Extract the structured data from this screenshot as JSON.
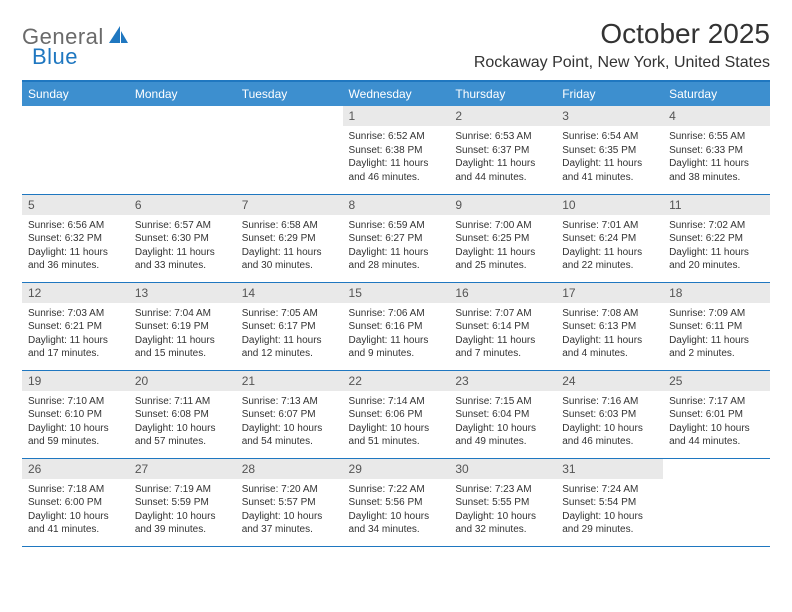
{
  "logo": {
    "text1": "General",
    "text2": "Blue"
  },
  "title": "October 2025",
  "location": "Rockaway Point, New York, United States",
  "colors": {
    "header_bg": "#3d8fcf",
    "header_text": "#ffffff",
    "border": "#1f77c0",
    "daynum_bg": "#e9e9e9",
    "logo_gray": "#6a6a6a",
    "logo_blue": "#1f77c0"
  },
  "dayHeaders": [
    "Sunday",
    "Monday",
    "Tuesday",
    "Wednesday",
    "Thursday",
    "Friday",
    "Saturday"
  ],
  "weeks": [
    [
      {
        "n": "",
        "lines": []
      },
      {
        "n": "",
        "lines": []
      },
      {
        "n": "",
        "lines": []
      },
      {
        "n": "1",
        "lines": [
          "Sunrise: 6:52 AM",
          "Sunset: 6:38 PM",
          "Daylight: 11 hours and 46 minutes."
        ]
      },
      {
        "n": "2",
        "lines": [
          "Sunrise: 6:53 AM",
          "Sunset: 6:37 PM",
          "Daylight: 11 hours and 44 minutes."
        ]
      },
      {
        "n": "3",
        "lines": [
          "Sunrise: 6:54 AM",
          "Sunset: 6:35 PM",
          "Daylight: 11 hours and 41 minutes."
        ]
      },
      {
        "n": "4",
        "lines": [
          "Sunrise: 6:55 AM",
          "Sunset: 6:33 PM",
          "Daylight: 11 hours and 38 minutes."
        ]
      }
    ],
    [
      {
        "n": "5",
        "lines": [
          "Sunrise: 6:56 AM",
          "Sunset: 6:32 PM",
          "Daylight: 11 hours and 36 minutes."
        ]
      },
      {
        "n": "6",
        "lines": [
          "Sunrise: 6:57 AM",
          "Sunset: 6:30 PM",
          "Daylight: 11 hours and 33 minutes."
        ]
      },
      {
        "n": "7",
        "lines": [
          "Sunrise: 6:58 AM",
          "Sunset: 6:29 PM",
          "Daylight: 11 hours and 30 minutes."
        ]
      },
      {
        "n": "8",
        "lines": [
          "Sunrise: 6:59 AM",
          "Sunset: 6:27 PM",
          "Daylight: 11 hours and 28 minutes."
        ]
      },
      {
        "n": "9",
        "lines": [
          "Sunrise: 7:00 AM",
          "Sunset: 6:25 PM",
          "Daylight: 11 hours and 25 minutes."
        ]
      },
      {
        "n": "10",
        "lines": [
          "Sunrise: 7:01 AM",
          "Sunset: 6:24 PM",
          "Daylight: 11 hours and 22 minutes."
        ]
      },
      {
        "n": "11",
        "lines": [
          "Sunrise: 7:02 AM",
          "Sunset: 6:22 PM",
          "Daylight: 11 hours and 20 minutes."
        ]
      }
    ],
    [
      {
        "n": "12",
        "lines": [
          "Sunrise: 7:03 AM",
          "Sunset: 6:21 PM",
          "Daylight: 11 hours and 17 minutes."
        ]
      },
      {
        "n": "13",
        "lines": [
          "Sunrise: 7:04 AM",
          "Sunset: 6:19 PM",
          "Daylight: 11 hours and 15 minutes."
        ]
      },
      {
        "n": "14",
        "lines": [
          "Sunrise: 7:05 AM",
          "Sunset: 6:17 PM",
          "Daylight: 11 hours and 12 minutes."
        ]
      },
      {
        "n": "15",
        "lines": [
          "Sunrise: 7:06 AM",
          "Sunset: 6:16 PM",
          "Daylight: 11 hours and 9 minutes."
        ]
      },
      {
        "n": "16",
        "lines": [
          "Sunrise: 7:07 AM",
          "Sunset: 6:14 PM",
          "Daylight: 11 hours and 7 minutes."
        ]
      },
      {
        "n": "17",
        "lines": [
          "Sunrise: 7:08 AM",
          "Sunset: 6:13 PM",
          "Daylight: 11 hours and 4 minutes."
        ]
      },
      {
        "n": "18",
        "lines": [
          "Sunrise: 7:09 AM",
          "Sunset: 6:11 PM",
          "Daylight: 11 hours and 2 minutes."
        ]
      }
    ],
    [
      {
        "n": "19",
        "lines": [
          "Sunrise: 7:10 AM",
          "Sunset: 6:10 PM",
          "Daylight: 10 hours and 59 minutes."
        ]
      },
      {
        "n": "20",
        "lines": [
          "Sunrise: 7:11 AM",
          "Sunset: 6:08 PM",
          "Daylight: 10 hours and 57 minutes."
        ]
      },
      {
        "n": "21",
        "lines": [
          "Sunrise: 7:13 AM",
          "Sunset: 6:07 PM",
          "Daylight: 10 hours and 54 minutes."
        ]
      },
      {
        "n": "22",
        "lines": [
          "Sunrise: 7:14 AM",
          "Sunset: 6:06 PM",
          "Daylight: 10 hours and 51 minutes."
        ]
      },
      {
        "n": "23",
        "lines": [
          "Sunrise: 7:15 AM",
          "Sunset: 6:04 PM",
          "Daylight: 10 hours and 49 minutes."
        ]
      },
      {
        "n": "24",
        "lines": [
          "Sunrise: 7:16 AM",
          "Sunset: 6:03 PM",
          "Daylight: 10 hours and 46 minutes."
        ]
      },
      {
        "n": "25",
        "lines": [
          "Sunrise: 7:17 AM",
          "Sunset: 6:01 PM",
          "Daylight: 10 hours and 44 minutes."
        ]
      }
    ],
    [
      {
        "n": "26",
        "lines": [
          "Sunrise: 7:18 AM",
          "Sunset: 6:00 PM",
          "Daylight: 10 hours and 41 minutes."
        ]
      },
      {
        "n": "27",
        "lines": [
          "Sunrise: 7:19 AM",
          "Sunset: 5:59 PM",
          "Daylight: 10 hours and 39 minutes."
        ]
      },
      {
        "n": "28",
        "lines": [
          "Sunrise: 7:20 AM",
          "Sunset: 5:57 PM",
          "Daylight: 10 hours and 37 minutes."
        ]
      },
      {
        "n": "29",
        "lines": [
          "Sunrise: 7:22 AM",
          "Sunset: 5:56 PM",
          "Daylight: 10 hours and 34 minutes."
        ]
      },
      {
        "n": "30",
        "lines": [
          "Sunrise: 7:23 AM",
          "Sunset: 5:55 PM",
          "Daylight: 10 hours and 32 minutes."
        ]
      },
      {
        "n": "31",
        "lines": [
          "Sunrise: 7:24 AM",
          "Sunset: 5:54 PM",
          "Daylight: 10 hours and 29 minutes."
        ]
      },
      {
        "n": "",
        "lines": []
      }
    ]
  ]
}
